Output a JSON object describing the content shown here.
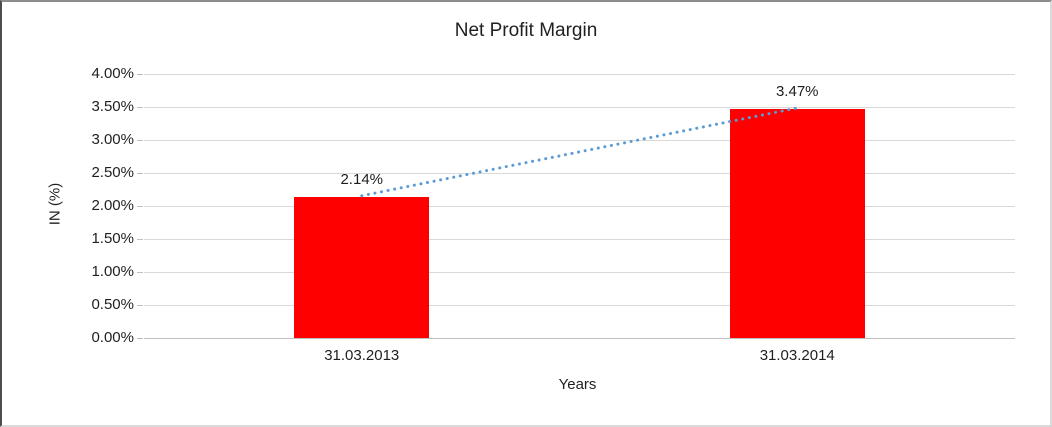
{
  "chart_data": {
    "type": "bar",
    "title": "Net Profit Margin",
    "xlabel": "Years",
    "ylabel": "IN (%)",
    "categories": [
      "31.03.2013",
      "31.03.2014"
    ],
    "values": [
      2.14,
      3.47
    ],
    "data_labels": [
      "2.14%",
      "3.47%"
    ],
    "y_tick_labels": [
      "0.00%",
      "0.50%",
      "1.00%",
      "1.50%",
      "2.00%",
      "2.50%",
      "3.00%",
      "3.50%",
      "4.00%"
    ],
    "ylim": [
      0,
      4
    ],
    "grid": true,
    "legend": "none",
    "colors": {
      "bar": "#FF0000",
      "trendline": "#5B9BD5",
      "gridline": "#D9D9D9",
      "axis_line": "#BFBFBF",
      "text": "#1F1F1F"
    },
    "trendline": {
      "type": "linear",
      "style": "dotted",
      "color": "#5B9BD5"
    }
  }
}
